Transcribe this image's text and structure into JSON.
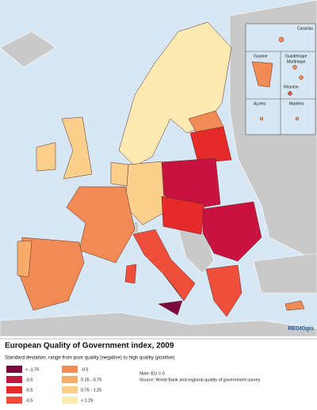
{
  "map": {
    "title": "European Quality of Government index, 2009",
    "subtitle": "Standard deviation, range from poor quality (negative) to high quality (positive)",
    "legend": [
      {
        "label": "< -1.75",
        "color": "#7b0b3f"
      },
      {
        "label": "-0.5",
        "color": "#c8123f"
      },
      {
        "label": "-0.5",
        "color": "#e62a2a"
      },
      {
        "label": "-0.5",
        "color": "#ef4f3a"
      },
      {
        "label": "-0.5",
        "color": "#f28a55"
      },
      {
        "label": "0.25 - 0.75",
        "color": "#f7ad69"
      },
      {
        "label": "0.75 - 1.25",
        "color": "#fbd08c"
      },
      {
        "label": "> 1.25",
        "color": "#fde9b2"
      }
    ],
    "note": "Note: EU = 0",
    "source": "Source: World Bank and regional quality of government survey",
    "insets": [
      "Canarias",
      "Guyane",
      "Guadeloupe",
      "Martinique",
      "Réunion",
      "Açores",
      "Madeira"
    ],
    "logo": "REGIOgis"
  }
}
